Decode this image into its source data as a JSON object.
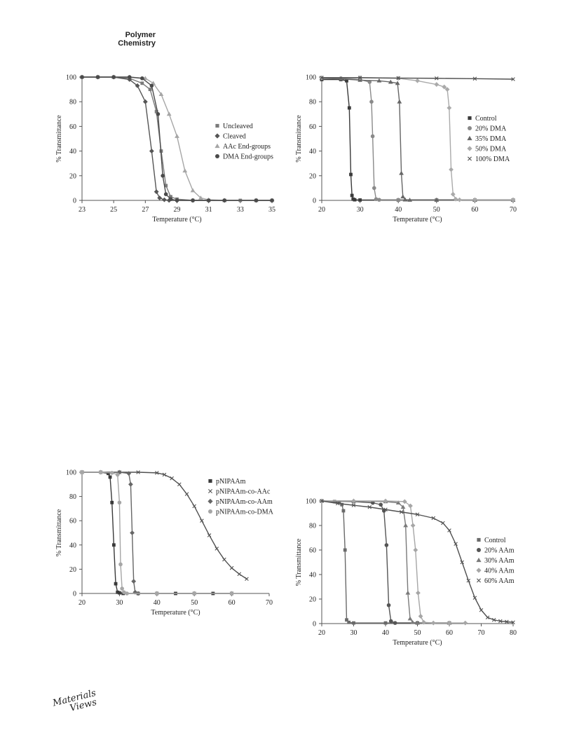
{
  "journal_header": {
    "line1": "Polymer",
    "line2": "Chemistry"
  },
  "publisher_logo": {
    "line1": "Materials",
    "line2": "Views"
  },
  "chart_data": [
    {
      "type": "line",
      "xlabel": "Temperature (°C)",
      "ylabel": "% Transmittance",
      "xlim": [
        23,
        35
      ],
      "ylim": [
        0,
        100
      ],
      "xticks": [
        23,
        25,
        27,
        29,
        31,
        33,
        35
      ],
      "yticks": [
        0,
        20,
        40,
        60,
        80,
        100
      ],
      "legend_position": "right-middle",
      "grid": false,
      "series": [
        {
          "name": "Uncleaved",
          "marker": "square",
          "color": "#7a7a7a",
          "x": [
            23,
            24,
            25,
            26,
            26.8,
            27.3,
            27.7,
            28,
            28.3,
            28.6,
            29,
            30,
            31,
            32,
            33,
            34,
            35
          ],
          "y": [
            100,
            100,
            100,
            99,
            95,
            90,
            72,
            40,
            12,
            3,
            1,
            0,
            0,
            0,
            0,
            0,
            0
          ]
        },
        {
          "name": "Cleaved",
          "marker": "diamond",
          "color": "#555555",
          "x": [
            23,
            24,
            25,
            26,
            26.5,
            27,
            27.4,
            27.7,
            27.9,
            28.2,
            28.5,
            29,
            30,
            32,
            34,
            35
          ],
          "y": [
            100,
            100,
            100,
            98,
            93,
            80,
            40,
            7,
            2,
            0.5,
            0,
            0,
            0,
            0,
            0,
            0
          ]
        },
        {
          "name": "AAc End-groups",
          "marker": "triangle",
          "color": "#a6a6a6",
          "x": [
            23,
            24,
            25,
            26,
            27,
            27.5,
            28,
            28.5,
            29,
            29.5,
            30,
            30.5,
            31,
            32,
            34,
            35
          ],
          "y": [
            100,
            100,
            100,
            100,
            99,
            95,
            86,
            70,
            52,
            24,
            8,
            2,
            0.5,
            0,
            0,
            0
          ]
        },
        {
          "name": "DMA End-groups",
          "marker": "circle",
          "color": "#4a4a4a",
          "x": [
            23,
            24,
            25,
            26,
            26.8,
            27.4,
            27.8,
            28.1,
            28.3,
            28.6,
            29,
            30,
            31,
            32,
            34,
            35
          ],
          "y": [
            100,
            100,
            100,
            100,
            99,
            93,
            70,
            20,
            5,
            1,
            0,
            0,
            0,
            0,
            0,
            0
          ]
        }
      ]
    },
    {
      "type": "line",
      "xlabel": "Temperature (°C)",
      "ylabel": "% Transmittance",
      "xlim": [
        20,
        70
      ],
      "ylim": [
        0,
        100
      ],
      "xticks": [
        20,
        30,
        40,
        50,
        60,
        70
      ],
      "yticks": [
        0,
        20,
        40,
        60,
        80,
        100
      ],
      "legend_position": "right-middle",
      "grid": false,
      "series": [
        {
          "name": "Control",
          "marker": "square",
          "color": "#3a3a3a",
          "x": [
            20,
            25,
            26.5,
            27.2,
            27.6,
            27.9,
            28.2,
            28.6,
            30,
            40,
            50,
            60,
            70
          ],
          "y": [
            98,
            98,
            97,
            75,
            21,
            4,
            1,
            0.5,
            0.3,
            0.3,
            0.3,
            0.3,
            0.3
          ]
        },
        {
          "name": "20% DMA",
          "marker": "circle",
          "color": "#8a8a8a",
          "x": [
            20,
            25,
            30,
            32.5,
            33,
            33.3,
            33.7,
            34.2,
            35,
            40,
            50,
            60,
            70
          ],
          "y": [
            99,
            99,
            98,
            96,
            80,
            52,
            10,
            1,
            0.5,
            0.5,
            0.5,
            0.5,
            0.5
          ]
        },
        {
          "name": "35% DMA",
          "marker": "triangle",
          "color": "#666666",
          "x": [
            20,
            25,
            30,
            35,
            38,
            39.8,
            40.3,
            40.8,
            41.2,
            41.8,
            43,
            50,
            60,
            70
          ],
          "y": [
            99,
            98.5,
            97.5,
            97,
            96,
            95,
            80,
            22,
            3,
            0.5,
            0.3,
            0.3,
            0.3,
            0.3
          ]
        },
        {
          "name": "50% DMA",
          "marker": "diamond",
          "color": "#aaaaaa",
          "x": [
            20,
            30,
            40,
            45,
            50,
            52,
            52.8,
            53.3,
            53.8,
            54.3,
            55,
            56,
            60,
            70
          ],
          "y": [
            99.5,
            99.5,
            99,
            97,
            94,
            92,
            90,
            75,
            25,
            5,
            1,
            0.5,
            0.5,
            0.5
          ]
        },
        {
          "name": "100% DMA",
          "marker": "x",
          "color": "#505050",
          "x": [
            20,
            30,
            40,
            50,
            60,
            70
          ],
          "y": [
            99.5,
            99.5,
            99.2,
            99,
            98.7,
            98.3
          ]
        }
      ]
    },
    {
      "type": "line",
      "xlabel": "Temperature (°C)",
      "ylabel": "% Transmittance",
      "xlim": [
        20,
        70
      ],
      "ylim": [
        0,
        100
      ],
      "xticks": [
        20,
        30,
        40,
        50,
        60,
        70
      ],
      "yticks": [
        0,
        20,
        40,
        60,
        80,
        100
      ],
      "legend_position": "right-top",
      "grid": false,
      "series": [
        {
          "name": "pNIPAAm",
          "marker": "square",
          "color": "#3a3a3a",
          "x": [
            20,
            25,
            27,
            27.5,
            28,
            28.5,
            29,
            29.5,
            30,
            31,
            35,
            40,
            45,
            50,
            55,
            60
          ],
          "y": [
            100,
            100,
            99,
            96,
            75,
            40,
            8,
            1,
            0.5,
            0,
            0,
            0,
            0,
            0,
            0,
            0
          ]
        },
        {
          "name": "pNIPAAm-co-AAc",
          "marker": "x",
          "color": "#505050",
          "x": [
            20,
            30,
            35,
            40,
            42,
            44,
            46,
            48,
            50,
            52,
            54,
            56,
            58,
            60,
            62,
            64
          ],
          "y": [
            100,
            100,
            100,
            99.5,
            98,
            95,
            90,
            82,
            72,
            60,
            48,
            37,
            28,
            21,
            16,
            12
          ]
        },
        {
          "name": "pNIPAAm-co-AAm",
          "marker": "diamond",
          "color": "#666666",
          "x": [
            20,
            25,
            30,
            32.5,
            33,
            33.4,
            33.8,
            34.2,
            35,
            40,
            50,
            60
          ],
          "y": [
            100,
            100,
            100,
            99,
            90,
            50,
            10,
            1,
            0,
            0,
            0,
            0
          ]
        },
        {
          "name": "pNIPAAm-co-DMA",
          "marker": "circle",
          "color": "#a6a6a6",
          "x": [
            20,
            25,
            28,
            29.5,
            30,
            30.3,
            30.7,
            31.2,
            32,
            40,
            50,
            60
          ],
          "y": [
            100,
            100,
            99.5,
            98,
            75,
            24,
            4,
            1,
            0,
            0,
            0,
            0
          ]
        }
      ]
    },
    {
      "type": "line",
      "xlabel": "Temperature (°C)",
      "ylabel": "% Transmittance",
      "xlim": [
        20,
        80
      ],
      "ylim": [
        0,
        100
      ],
      "xticks": [
        20,
        30,
        40,
        50,
        60,
        70,
        80
      ],
      "yticks": [
        0,
        20,
        40,
        60,
        80,
        100
      ],
      "legend_position": "right-middle",
      "grid": false,
      "series": [
        {
          "name": "Control",
          "marker": "square",
          "color": "#6a6a6a",
          "x": [
            20,
            24,
            25.5,
            26.3,
            26.8,
            27.3,
            27.8,
            28.5,
            30,
            40,
            50,
            60
          ],
          "y": [
            100,
            99.5,
            99,
            97,
            92,
            60,
            3,
            1,
            0.5,
            0.5,
            0.5,
            0.5
          ]
        },
        {
          "name": "20% AAm",
          "marker": "circle",
          "color": "#555555",
          "x": [
            20,
            30,
            36,
            38.5,
            39.5,
            40.3,
            41,
            41.7,
            43,
            50,
            60
          ],
          "y": [
            100,
            99.5,
            98.5,
            97,
            92,
            64,
            15,
            2,
            0.5,
            0.5,
            0.5
          ]
        },
        {
          "name": "30% AAm",
          "marker": "triangle",
          "color": "#7a7a7a",
          "x": [
            20,
            30,
            40,
            44,
            45.5,
            46.3,
            47,
            47.7,
            48.5,
            50,
            60
          ],
          "y": [
            100,
            100,
            99.5,
            98.5,
            95,
            80,
            25,
            4,
            1,
            0.5,
            0.5
          ]
        },
        {
          "name": "40% AAm",
          "marker": "diamond",
          "color": "#a6a6a6",
          "x": [
            20,
            30,
            40,
            46,
            47.8,
            48.6,
            49.4,
            50.2,
            51,
            52,
            55,
            60,
            65
          ],
          "y": [
            100,
            100,
            100,
            99.5,
            96,
            80,
            60,
            25,
            6,
            1,
            0.5,
            0.5,
            0.5
          ]
        },
        {
          "name": "60% AAm",
          "marker": "x",
          "color": "#505050",
          "x": [
            20,
            25,
            30,
            35,
            40,
            45,
            50,
            55,
            58,
            60,
            62,
            64,
            66,
            68,
            70,
            72,
            74,
            76,
            78,
            80
          ],
          "y": [
            100,
            98,
            96.5,
            95,
            93,
            91,
            89,
            86,
            82,
            76,
            65,
            50,
            35,
            21,
            11,
            5,
            3,
            2,
            1.5,
            1
          ]
        }
      ]
    }
  ]
}
